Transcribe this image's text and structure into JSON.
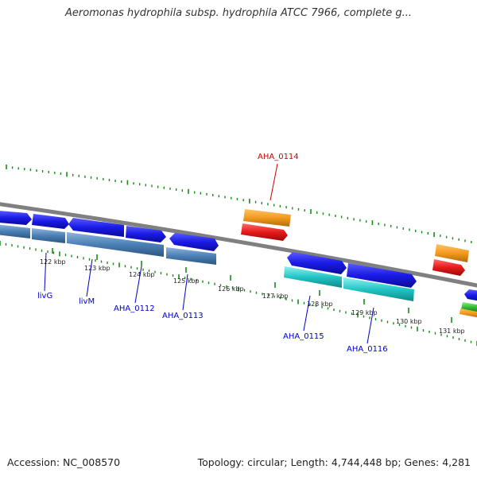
{
  "title": "Aeromonas hydrophila subsp. hydrophila ATCC 7966, complete g...",
  "footer": {
    "accession": "Accession: NC_008570",
    "topology": "Topology: circular; Length: 4,744,448 bp; Genes: 4,281"
  },
  "colors": {
    "backbone": "#808080",
    "forward_cds": "#1a1ae6",
    "reverse_operon": "#4a7fb5",
    "reverse_operon_2": "#22c5c5",
    "orange_feature": "#f39a1e",
    "red_feature": "#e61a1a",
    "green_feature": "#33bb33",
    "tick": "#1a8a1a",
    "label_blue": "#0000cc",
    "label_red": "#cc0000"
  },
  "kbp_labels": [
    "122 kbp",
    "123 kbp",
    "124 kbp",
    "125 kbp",
    "126 kbp",
    "127 kbp",
    "128 kbp",
    "129 kbp",
    "130 kbp",
    "131 kbp"
  ],
  "gene_labels": [
    {
      "text": "livG",
      "color": "label_blue"
    },
    {
      "text": "livM",
      "color": "label_blue"
    },
    {
      "text": "AHA_0112",
      "color": "label_blue"
    },
    {
      "text": "AHA_0113",
      "color": "label_blue"
    },
    {
      "text": "AHA_0114",
      "color": "label_red"
    },
    {
      "text": "AHA_0115",
      "color": "label_blue"
    },
    {
      "text": "AHA_0116",
      "color": "label_blue"
    }
  ]
}
